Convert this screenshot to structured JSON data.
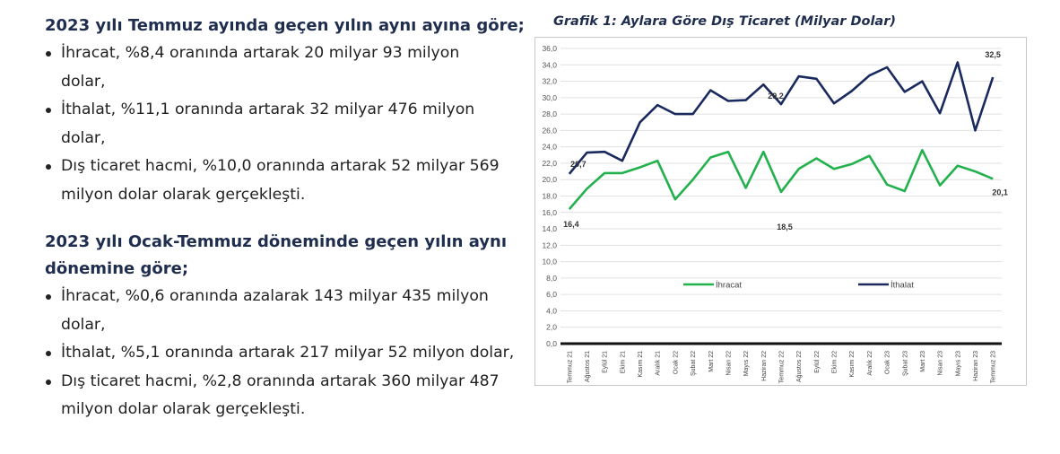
{
  "section1": {
    "heading": "2023 yılı Temmuz ayında geçen yılın aynı ayına göre;",
    "items": [
      {
        "line1": "İhracat, %8,4 oranında artarak 20 milyar 93 milyon",
        "line2": "dolar,"
      },
      {
        "line1": "İthalat, %11,1 oranında artarak 32 milyar 476 milyon",
        "line2": "dolar,"
      },
      {
        "line1": "Dış ticaret hacmi, %10,0 oranında artarak 52 milyar 569",
        "line2": "milyon dolar olarak gerçekleşti."
      }
    ]
  },
  "section2": {
    "heading_line1": "2023 yılı Ocak-Temmuz döneminde geçen yılın aynı",
    "heading_line2": "dönemine göre;",
    "items": [
      {
        "line1": "İhracat, %0,6 oranında azalarak 143 milyar 435 milyon",
        "line2": "dolar,"
      },
      {
        "line1": "İthalat, %5,1 oranında artarak 217 milyar 52 milyon dolar,",
        "line2": ""
      },
      {
        "line1": "Dış ticaret hacmi, %2,8 oranında artarak 360 milyar 487",
        "line2": "milyon dolar olarak gerçekleşti."
      }
    ]
  },
  "chart_data": {
    "type": "line",
    "title": "Grafik 1: Aylara Göre Dış Ticaret (Milyar Dolar)",
    "categories": [
      "Temmuz 21",
      "Ağustos 21",
      "Eylül 21",
      "Ekim 21",
      "Kasım 21",
      "Aralık 21",
      "Ocak 22",
      "Şubat 22",
      "Mart 22",
      "Nisan 22",
      "Mayıs 22",
      "Haziran 22",
      "Temmuz 22",
      "Ağustos 22",
      "Eylül 22",
      "Ekim 22",
      "Kasım 22",
      "Aralık 22",
      "Ocak 23",
      "Şubat 23",
      "Mart 23",
      "Nisan 23",
      "Mayıs 23",
      "Haziran 23",
      "Temmuz 23"
    ],
    "series": [
      {
        "name": "İhracat",
        "color": "#22b14c",
        "values": [
          16.4,
          18.9,
          20.8,
          20.8,
          21.5,
          22.3,
          17.6,
          20.0,
          22.7,
          23.4,
          19.0,
          23.4,
          18.5,
          21.3,
          22.6,
          21.3,
          21.9,
          22.9,
          19.4,
          18.6,
          23.6,
          19.3,
          21.7,
          21.0,
          20.1
        ]
      },
      {
        "name": "İthalat",
        "color": "#1a2a5e",
        "values": [
          20.7,
          23.3,
          23.4,
          22.3,
          27.0,
          29.1,
          28.0,
          28.0,
          30.9,
          29.6,
          29.7,
          31.6,
          29.2,
          32.6,
          32.3,
          29.3,
          30.8,
          32.7,
          33.7,
          30.7,
          32.0,
          28.1,
          34.3,
          26.0,
          32.5
        ]
      }
    ],
    "data_labels": [
      {
        "series": "İthalat",
        "category": "Temmuz 21",
        "text": "20,7"
      },
      {
        "series": "İthalat",
        "category": "Temmuz 22",
        "text": "29,2"
      },
      {
        "series": "İthalat",
        "category": "Temmuz 23",
        "text": "32,5"
      },
      {
        "series": "İhracat",
        "category": "Temmuz 21",
        "text": "16,4"
      },
      {
        "series": "İhracat",
        "category": "Temmuz 22",
        "text": "18,5"
      },
      {
        "series": "İhracat",
        "category": "Temmuz 23",
        "text": "20,1"
      }
    ],
    "y_ticks": [
      "0,0",
      "2,0",
      "4,0",
      "6,0",
      "8,0",
      "10,0",
      "12,0",
      "14,0",
      "16,0",
      "18,0",
      "20,0",
      "22,0",
      "24,0",
      "26,0",
      "28,0",
      "30,0",
      "32,0",
      "34,0",
      "36,0"
    ],
    "ylim": [
      0,
      36
    ],
    "grid": true,
    "legend": "middle"
  }
}
